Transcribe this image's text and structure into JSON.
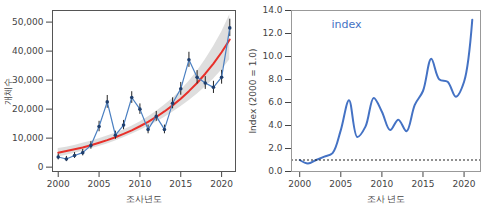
{
  "chart_data": [
    {
      "type": "line",
      "xlabel": "조사년도",
      "ylabel": "개체수",
      "x": [
        2000,
        2001,
        2002,
        2003,
        2004,
        2005,
        2006,
        2007,
        2008,
        2009,
        2010,
        2011,
        2012,
        2013,
        2014,
        2015,
        2016,
        2017,
        2018,
        2019,
        2020,
        2021
      ],
      "xlim": [
        1999.3,
        2021.7
      ],
      "xticks": [
        2000,
        2005,
        2010,
        2015,
        2020
      ],
      "ylim": [
        -1500,
        54000
      ],
      "yticks": [
        0,
        {
          "value": 10000,
          "label": "10,000"
        },
        {
          "value": 20000,
          "label": "20,000"
        },
        {
          "value": 30000,
          "label": "30,000"
        },
        {
          "value": 40000,
          "label": "40,000"
        },
        {
          "value": 50000,
          "label": "50,000"
        }
      ],
      "series": [
        {
          "type": "band",
          "color": "#d6d6d6",
          "lower": [
            3500,
            4100,
            4800,
            5500,
            6300,
            7100,
            8000,
            9000,
            10100,
            11300,
            12600,
            14000,
            15500,
            17100,
            18900,
            20800,
            22900,
            25100,
            27600,
            30300,
            33400,
            37000
          ],
          "upper": [
            6400,
            6900,
            7500,
            8200,
            8900,
            9800,
            10700,
            11700,
            12800,
            14100,
            15600,
            17300,
            19200,
            21300,
            23700,
            26400,
            29500,
            33000,
            37000,
            41500,
            46500,
            52500
          ]
        },
        {
          "type": "line",
          "color": "#e8302a",
          "values": [
            5000,
            5550,
            6150,
            6800,
            7550,
            8400,
            9300,
            10300,
            11450,
            12700,
            14100,
            15600,
            17300,
            19200,
            21300,
            23600,
            26200,
            29000,
            32200,
            35700,
            39600,
            44000
          ]
        },
        {
          "type": "line",
          "marker": "circle",
          "color": "#4a7fc1",
          "values": [
            3500,
            2800,
            4000,
            5000,
            7500,
            14000,
            22500,
            11000,
            14500,
            24000,
            20000,
            13000,
            17500,
            13000,
            22000,
            27000,
            37000,
            31000,
            29000,
            27500,
            31000,
            48000
          ],
          "errors": [
            1000,
            900,
            1000,
            1100,
            1300,
            1800,
            2200,
            1400,
            1600,
            2000,
            1800,
            1500,
            1700,
            1500,
            1900,
            2200,
            2600,
            2300,
            2200,
            2100,
            2400,
            3000
          ]
        }
      ]
    },
    {
      "type": "line",
      "xlabel": "조사 년도",
      "ylabel": "Index (2000 = 1.0)",
      "annotation": "index",
      "x": [
        2000,
        2001,
        2002,
        2003,
        2004,
        2005,
        2006,
        2007,
        2008,
        2009,
        2010,
        2011,
        2012,
        2013,
        2014,
        2015,
        2016,
        2017,
        2018,
        2019,
        2020,
        2021
      ],
      "xlim": [
        1999,
        2022
      ],
      "xticks": [
        2000,
        2005,
        2010,
        2015,
        2020
      ],
      "ylim": [
        0,
        14
      ],
      "yticks": [
        {
          "value": 0,
          "label": "0.0"
        },
        {
          "value": 2,
          "label": "2.0"
        },
        {
          "value": 4,
          "label": "4.0"
        },
        {
          "value": 6,
          "label": "6.0"
        },
        {
          "value": 8,
          "label": "8.0"
        },
        {
          "value": 10,
          "label": "10.0"
        },
        {
          "value": 12,
          "label": "12.0"
        },
        {
          "value": 14,
          "label": "14.0"
        }
      ],
      "baseline": 1.0,
      "series": [
        {
          "type": "line",
          "color": "#4472c4",
          "values": [
            1.0,
            0.7,
            1.0,
            1.3,
            1.6,
            3.6,
            6.2,
            3.0,
            3.9,
            6.4,
            5.2,
            3.6,
            4.5,
            3.5,
            5.8,
            7.0,
            9.8,
            8.0,
            7.8,
            6.5,
            7.8,
            13.2
          ]
        }
      ]
    }
  ]
}
